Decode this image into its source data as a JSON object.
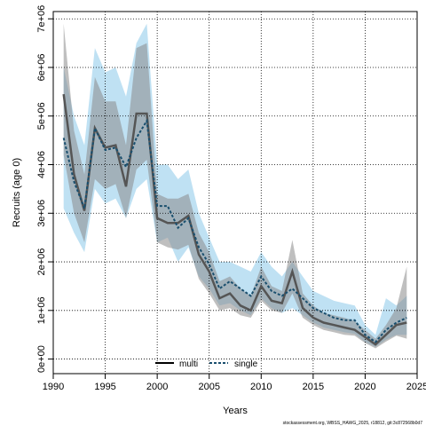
{
  "chart_data": {
    "type": "line",
    "xlabel": "Years",
    "ylabel": "Recruits (age 0)",
    "xlim": [
      1990,
      2025
    ],
    "ylim": [
      0,
      7000000
    ],
    "x_ticks": [
      1990,
      1995,
      2000,
      2005,
      2010,
      2015,
      2020,
      2025
    ],
    "x_tick_labels": [
      "1990",
      "1995",
      "2000",
      "2005",
      "2010",
      "2015",
      "2020",
      "2025"
    ],
    "y_ticks": [
      0,
      1000000,
      2000000,
      3000000,
      4000000,
      5000000,
      6000000,
      7000000
    ],
    "y_tick_labels": [
      "0e+00",
      "1e+06",
      "2e+06",
      "3e+06",
      "4e+06",
      "5e+06",
      "6e+06",
      "7e+06"
    ],
    "grid": true,
    "legend_position": "bottom-center",
    "years": [
      1991,
      1992,
      1993,
      1994,
      1995,
      1996,
      1997,
      1998,
      1999,
      2000,
      2001,
      2002,
      2003,
      2004,
      2005,
      2006,
      2007,
      2008,
      2009,
      2010,
      2011,
      2012,
      2013,
      2014,
      2015,
      2016,
      2017,
      2018,
      2019,
      2020,
      2021,
      2022,
      2023,
      2024
    ],
    "series": [
      {
        "name": "multi",
        "line_style": "solid",
        "color": "#555555",
        "band_color": "#8a8a8a",
        "values": [
          5450000,
          3800000,
          3050000,
          4750000,
          4350000,
          4400000,
          3550000,
          5050000,
          5050000,
          2900000,
          2800000,
          2800000,
          2950000,
          2150000,
          1800000,
          1250000,
          1350000,
          1100000,
          1000000,
          1500000,
          1200000,
          1150000,
          1800000,
          1050000,
          850000,
          750000,
          700000,
          650000,
          600000,
          450000,
          300000,
          500000,
          700000,
          750000
        ],
        "lower": [
          4200000,
          3000000,
          2400000,
          3700000,
          3500000,
          3600000,
          2900000,
          3900000,
          4100000,
          2400000,
          2300000,
          2250000,
          2350000,
          1650000,
          1350000,
          1000000,
          1050000,
          900000,
          850000,
          1200000,
          1000000,
          950000,
          1350000,
          850000,
          700000,
          600000,
          550000,
          500000,
          480000,
          330000,
          220000,
          360000,
          480000,
          420000
        ],
        "upper": [
          6900000,
          4700000,
          3800000,
          5800000,
          5300000,
          5300000,
          4400000,
          6400000,
          6500000,
          3400000,
          3300000,
          3300000,
          3400000,
          2600000,
          2200000,
          1600000,
          1700000,
          1450000,
          1300000,
          1900000,
          1500000,
          1400000,
          2450000,
          1350000,
          1100000,
          950000,
          900000,
          850000,
          780000,
          600000,
          420000,
          700000,
          1050000,
          1900000
        ]
      },
      {
        "name": "single",
        "line_style": "dashed",
        "color": "#1a4f6e",
        "band_color": "#7fc3e8",
        "values": [
          4550000,
          3650000,
          3100000,
          4750000,
          4300000,
          4350000,
          3950000,
          4550000,
          4900000,
          3150000,
          3150000,
          2700000,
          2900000,
          2300000,
          1950000,
          1450000,
          1600000,
          1450000,
          1300000,
          1700000,
          1400000,
          1300000,
          1450000,
          1250000,
          1050000,
          950000,
          850000,
          800000,
          800000,
          500000,
          350000,
          600000,
          750000,
          850000
        ],
        "lower": [
          3100000,
          2600000,
          2200000,
          3500000,
          3200000,
          3300000,
          2900000,
          3500000,
          3700000,
          2400000,
          2500000,
          2000000,
          2300000,
          1700000,
          1450000,
          1100000,
          1150000,
          1000000,
          900000,
          1250000,
          1050000,
          950000,
          1050000,
          900000,
          750000,
          650000,
          600000,
          550000,
          520000,
          350000,
          250000,
          400000,
          500000,
          500000
        ],
        "upper": [
          6000000,
          5000000,
          4400000,
          6400000,
          5900000,
          6000000,
          5400000,
          6500000,
          6900000,
          4000000,
          4000000,
          3700000,
          3900000,
          3000000,
          2500000,
          2000000,
          2000000,
          1900000,
          1800000,
          2200000,
          1900000,
          1700000,
          2000000,
          1700000,
          1400000,
          1300000,
          1200000,
          1150000,
          1100000,
          700000,
          500000,
          1250000,
          1100000,
          1300000
        ]
      }
    ]
  },
  "footnote": "stockassessment.org, WBSS_HAWG_2025, r18812, git:3c872568b0d7"
}
